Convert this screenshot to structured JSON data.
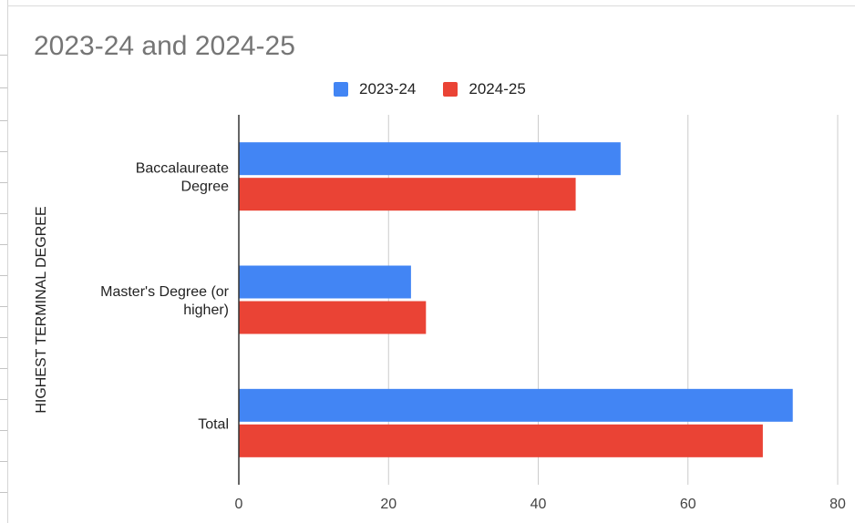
{
  "chart_data": {
    "type": "bar",
    "orientation": "horizontal",
    "title": "2023-24 and 2024-25",
    "ylabel": "HIGHEST TERMINAL DEGREE",
    "xlabel": "",
    "categories": [
      [
        "Baccalaureate",
        "Degree"
      ],
      [
        "Master's Degree (or",
        "higher)"
      ],
      [
        "Total"
      ]
    ],
    "series": [
      {
        "name": "2023-24",
        "color": "#4285f4",
        "values": [
          51,
          23,
          74
        ]
      },
      {
        "name": "2024-25",
        "color": "#ea4335",
        "values": [
          45,
          25,
          70
        ]
      }
    ],
    "xlim": [
      0,
      80
    ],
    "xticks": [
      "0",
      "20",
      "40",
      "60",
      "80"
    ],
    "grid": true,
    "legend_position": "top"
  }
}
